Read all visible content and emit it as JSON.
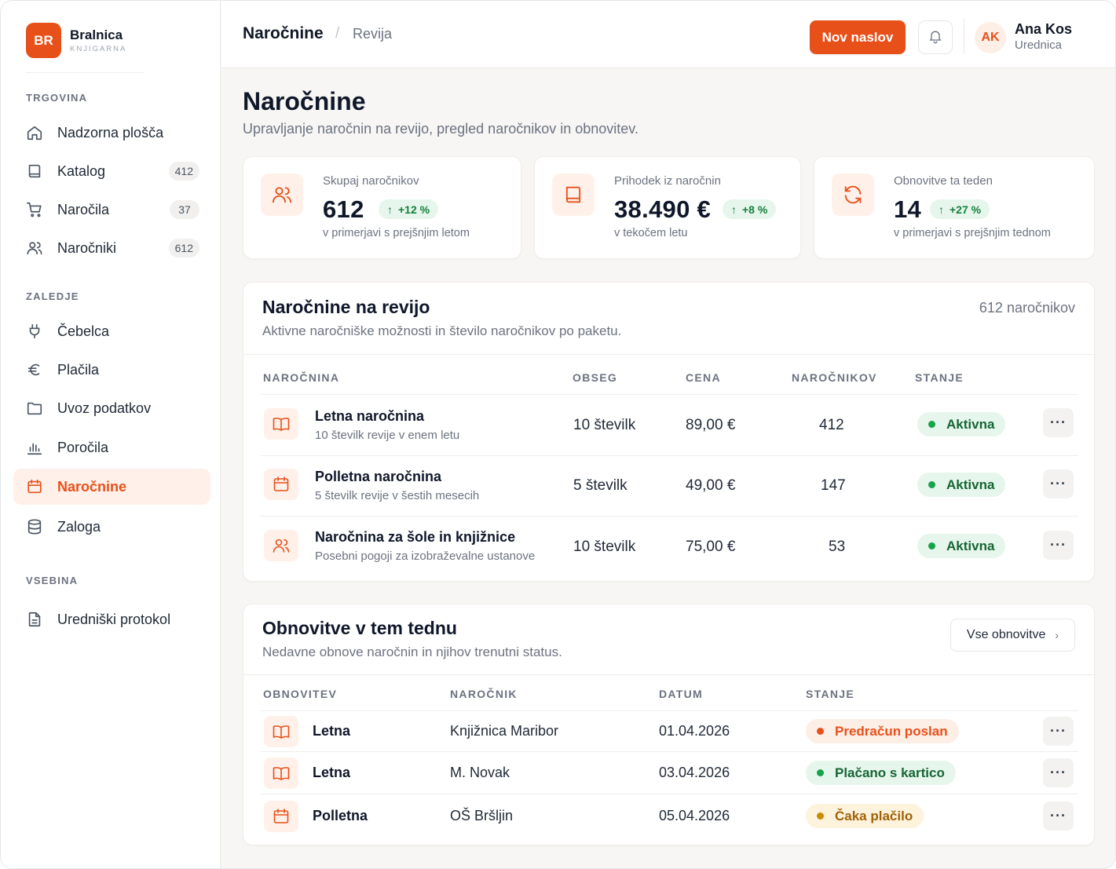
{
  "brand": {
    "initials": "BR",
    "name": "Bralnica",
    "subtitle": "KNJIGARNA"
  },
  "sidebar": {
    "sections": [
      {
        "label": "TRGOVINA"
      },
      {
        "label": "ZALEDJE"
      },
      {
        "label": "VSEBINA"
      }
    ],
    "items": [
      {
        "label": "Nadzorna plošča",
        "icon": "home-icon"
      },
      {
        "label": "Katalog",
        "icon": "book-icon",
        "count": "412"
      },
      {
        "label": "Naročila",
        "icon": "cart-icon",
        "count": "37"
      },
      {
        "label": "Naročniki",
        "icon": "users-icon",
        "count": "612"
      },
      {
        "label": "Čebelca",
        "icon": "plug-icon"
      },
      {
        "label": "Plačila",
        "icon": "euro-icon"
      },
      {
        "label": "Uvoz podatkov",
        "icon": "folder-icon"
      },
      {
        "label": "Poročila",
        "icon": "chart-icon"
      },
      {
        "label": "Naročnine",
        "icon": "calendar-icon",
        "active": true
      },
      {
        "label": "Zaloga",
        "icon": "database-icon"
      },
      {
        "label": "Uredniški protokol",
        "icon": "document-icon"
      }
    ]
  },
  "header": {
    "breadcrumb": {
      "current": "Naročnine",
      "separator": "/",
      "sub": "Revija"
    },
    "new_button": "Nov naslov",
    "user": {
      "initials": "AK",
      "name": "Ana Kos",
      "role": "Urednica"
    }
  },
  "page": {
    "title": "Naročnine",
    "subtitle": "Upravljanje naročnin na revijo, pregled naročnikov in obnovitev."
  },
  "stats": [
    {
      "label": "Skupaj naročnikov",
      "value": "612",
      "delta": "+12 %",
      "note": "v primerjavi s prejšnjim letom",
      "icon": "users-icon"
    },
    {
      "label": "Prihodek iz naročnin",
      "value": "38.490 €",
      "delta": "+8 %",
      "note": "v tekočem letu",
      "icon": "book-icon"
    },
    {
      "label": "Obnovitve ta teden",
      "value": "14",
      "delta": "+27 %",
      "note": "v primerjavi s prejšnjim tednom",
      "icon": "refresh-icon"
    }
  ],
  "plans": {
    "title": "Naročnine na revijo",
    "subtitle": "Aktivne naročniške možnosti in število naročnikov po paketu.",
    "total": "612 naročnikov",
    "columns": [
      "NAROČNINA",
      "OBSEG",
      "CENA",
      "NAROČNIKOV",
      "STANJE"
    ],
    "rows": [
      {
        "name": "Letna naročnina",
        "desc": "10 številk revije v enem letu",
        "scope": "10 številk",
        "price": "89,00 €",
        "count": "412",
        "status": "Aktivna",
        "icon": "book-icon"
      },
      {
        "name": "Polletna naročnina",
        "desc": "5 številk revije v šestih mesecih",
        "scope": "5 številk",
        "price": "49,00 €",
        "count": "147",
        "status": "Aktivna",
        "icon": "calendar-icon"
      },
      {
        "name": "Naročnina za šole in knjižnice",
        "desc": "Posebni pogoji za izobraževalne ustanove",
        "scope": "10 številk",
        "price": "75,00 €",
        "count": "53",
        "status": "Aktivna",
        "icon": "users-icon"
      }
    ]
  },
  "renewals": {
    "title": "Obnovitve v tem tednu",
    "subtitle": "Nedavne obnove naročnin in njihov trenutni status.",
    "all_button": "Vse obnovitve",
    "columns": [
      "OBNOVITEV",
      "NAROČNIK",
      "DATUM",
      "STANJE"
    ],
    "rows": [
      {
        "type": "Letna",
        "customer": "Knjižnica Maribor",
        "date": "01.04.2026",
        "status": "Predračun poslan",
        "tone": "red",
        "icon": "book-icon"
      },
      {
        "type": "Letna",
        "customer": "M. Novak",
        "date": "03.04.2026",
        "status": "Plačano s kartico",
        "tone": "green",
        "icon": "book-icon"
      },
      {
        "type": "Polletna",
        "customer": "OŠ Bršljin",
        "date": "05.04.2026",
        "status": "Čaka plačilo",
        "tone": "yellow",
        "icon": "calendar-icon"
      }
    ]
  },
  "colors": {
    "accent": "#e8501a",
    "success": "#16a34a",
    "warning": "#ca8a04"
  }
}
